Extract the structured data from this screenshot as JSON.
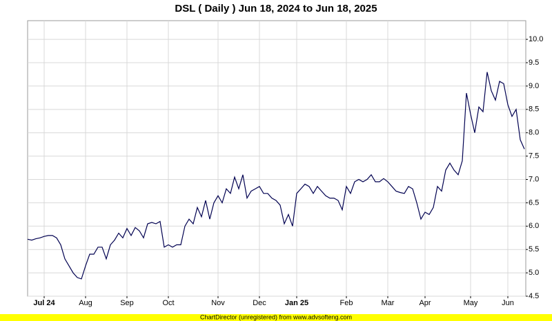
{
  "chart_data": {
    "type": "line",
    "title": "DSL ( Daily ) Jun 18, 2024 to Jun 18, 2025",
    "footer": "ChartDirector (unregistered) from www.advsofteng.com",
    "categories": [
      null,
      null,
      null,
      null,
      "Jul 24",
      null,
      null,
      null,
      null,
      null,
      null,
      null,
      null,
      null,
      "Aug",
      null,
      null,
      null,
      null,
      null,
      null,
      null,
      null,
      null,
      "Sep",
      null,
      null,
      null,
      null,
      null,
      null,
      null,
      null,
      null,
      "Oct",
      null,
      null,
      null,
      null,
      null,
      null,
      null,
      null,
      null,
      null,
      null,
      "Nov",
      null,
      null,
      null,
      null,
      null,
      null,
      null,
      null,
      null,
      "Dec",
      null,
      null,
      null,
      null,
      null,
      null,
      null,
      null,
      "Jan 25",
      null,
      null,
      null,
      null,
      null,
      null,
      null,
      null,
      null,
      null,
      null,
      "Feb",
      null,
      null,
      null,
      null,
      null,
      null,
      null,
      null,
      null,
      "Mar",
      null,
      null,
      null,
      null,
      null,
      null,
      null,
      null,
      "Apr",
      null,
      null,
      null,
      null,
      null,
      null,
      null,
      null,
      null,
      null,
      "May",
      null,
      null,
      null,
      null,
      null,
      null,
      null,
      null,
      "Jun",
      null,
      null,
      null,
      null
    ],
    "series": [
      {
        "color": "#000050",
        "values": [
          5.72,
          5.7,
          5.73,
          5.75,
          5.78,
          5.8,
          5.8,
          5.75,
          5.6,
          5.3,
          5.15,
          5.0,
          4.9,
          4.87,
          5.15,
          5.4,
          5.4,
          5.55,
          5.55,
          5.3,
          5.6,
          5.7,
          5.85,
          5.75,
          5.95,
          5.8,
          5.97,
          5.9,
          5.75,
          6.05,
          6.08,
          6.05,
          6.1,
          5.55,
          5.6,
          5.55,
          5.6,
          5.6,
          6.0,
          6.15,
          6.05,
          6.4,
          6.2,
          6.55,
          6.15,
          6.5,
          6.65,
          6.5,
          6.8,
          6.7,
          7.05,
          6.8,
          7.1,
          6.6,
          6.75,
          6.8,
          6.85,
          6.7,
          6.7,
          6.6,
          6.55,
          6.45,
          6.05,
          6.25,
          6.0,
          6.7,
          6.8,
          6.9,
          6.85,
          6.7,
          6.85,
          6.75,
          6.65,
          6.6,
          6.6,
          6.55,
          6.35,
          6.85,
          6.7,
          6.95,
          7.0,
          6.95,
          7.0,
          7.1,
          6.95,
          6.95,
          7.02,
          6.95,
          6.85,
          6.75,
          6.72,
          6.7,
          6.85,
          6.8,
          6.5,
          6.15,
          6.3,
          6.25,
          6.4,
          6.85,
          6.75,
          7.2,
          7.35,
          7.2,
          7.1,
          7.4,
          8.85,
          8.4,
          8.0,
          8.55,
          8.45,
          9.3,
          8.9,
          8.7,
          9.1,
          9.05,
          8.6,
          8.35,
          8.5,
          7.85,
          7.65
        ]
      }
    ],
    "ylim": [
      4.5,
      10.4
    ],
    "yticks": [
      4.5,
      {
        "value": 5,
        "label": "5.0"
      },
      5.5,
      {
        "value": 6,
        "label": "6.0"
      },
      6.5,
      {
        "value": 7,
        "label": "7.0"
      },
      7.5,
      {
        "value": 8,
        "label": "8.0"
      },
      8.5,
      {
        "value": 9,
        "label": "9.0"
      },
      9.5,
      {
        "value": 10,
        "label": "10.0"
      }
    ],
    "grid": true
  }
}
